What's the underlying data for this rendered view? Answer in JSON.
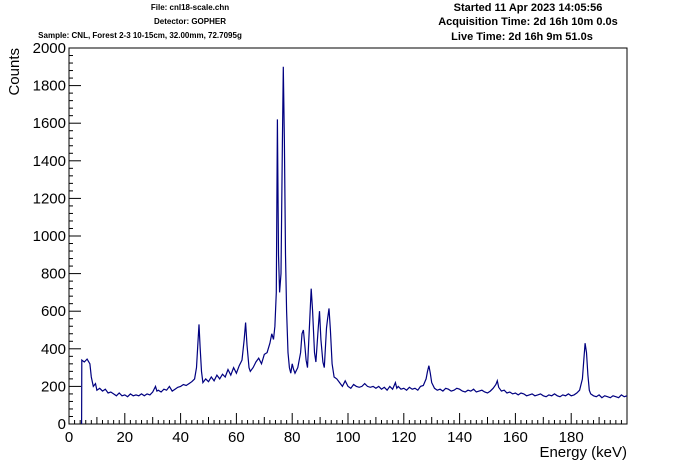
{
  "header": {
    "file": "File: cnl18-scale.chn",
    "detector": "Detector: GOPHER",
    "sample": "Sample: CNL, Forest 2-3 10-15cm, 32.00mm, 72.7095g",
    "started": "Started 11 Apr 2023 14:05:56",
    "acquisition": "Acquisition Time: 2d 16h 10m 0.0s",
    "live": "Live Time: 2d 16h 9m 51.0s"
  },
  "chart_data": {
    "type": "line",
    "xlabel": "Energy (keV)",
    "ylabel": "Counts",
    "xlim": [
      0,
      200
    ],
    "ylim": [
      0,
      2000
    ],
    "xticks": [
      0,
      20,
      40,
      60,
      80,
      100,
      120,
      140,
      160,
      180
    ],
    "yticks": [
      0,
      200,
      400,
      600,
      800,
      1000,
      1200,
      1400,
      1600,
      1800,
      2000
    ],
    "grid": false,
    "line_color": "#000080",
    "points": [
      [
        4.5,
        0
      ],
      [
        4.6,
        340
      ],
      [
        5.5,
        330
      ],
      [
        6.5,
        345
      ],
      [
        7.5,
        320
      ],
      [
        8,
        250
      ],
      [
        8.7,
        200
      ],
      [
        9.5,
        215
      ],
      [
        10,
        180
      ],
      [
        11,
        190
      ],
      [
        12,
        175
      ],
      [
        13,
        185
      ],
      [
        14,
        165
      ],
      [
        15,
        170
      ],
      [
        16,
        160
      ],
      [
        17,
        150
      ],
      [
        18,
        165
      ],
      [
        19,
        150
      ],
      [
        20,
        155
      ],
      [
        21,
        145
      ],
      [
        22,
        160
      ],
      [
        23,
        150
      ],
      [
        24,
        155
      ],
      [
        25,
        150
      ],
      [
        26,
        160
      ],
      [
        27,
        150
      ],
      [
        28,
        160
      ],
      [
        29,
        155
      ],
      [
        30,
        170
      ],
      [
        31,
        200
      ],
      [
        31.5,
        175
      ],
      [
        32,
        180
      ],
      [
        33,
        170
      ],
      [
        34,
        185
      ],
      [
        35,
        180
      ],
      [
        36,
        200
      ],
      [
        37,
        175
      ],
      [
        38,
        185
      ],
      [
        39,
        195
      ],
      [
        40,
        200
      ],
      [
        41,
        210
      ],
      [
        42,
        205
      ],
      [
        43,
        215
      ],
      [
        44,
        225
      ],
      [
        45,
        240
      ],
      [
        45.7,
        300
      ],
      [
        46.2,
        430
      ],
      [
        46.6,
        530
      ],
      [
        47,
        410
      ],
      [
        47.5,
        280
      ],
      [
        48,
        220
      ],
      [
        49,
        240
      ],
      [
        50,
        225
      ],
      [
        51,
        250
      ],
      [
        52,
        230
      ],
      [
        53,
        260
      ],
      [
        54,
        240
      ],
      [
        55,
        265
      ],
      [
        56,
        250
      ],
      [
        57,
        290
      ],
      [
        58,
        260
      ],
      [
        59,
        300
      ],
      [
        60,
        270
      ],
      [
        61,
        310
      ],
      [
        62,
        340
      ],
      [
        62.8,
        450
      ],
      [
        63.3,
        540
      ],
      [
        63.8,
        420
      ],
      [
        64.5,
        300
      ],
      [
        65,
        280
      ],
      [
        66,
        300
      ],
      [
        67,
        330
      ],
      [
        68,
        350
      ],
      [
        69,
        320
      ],
      [
        70,
        370
      ],
      [
        71,
        380
      ],
      [
        72,
        430
      ],
      [
        72.7,
        480
      ],
      [
        73.3,
        450
      ],
      [
        73.8,
        520
      ],
      [
        74.3,
        700
      ],
      [
        74.7,
        1620
      ],
      [
        75.1,
        900
      ],
      [
        75.5,
        700
      ],
      [
        76,
        800
      ],
      [
        76.5,
        1500
      ],
      [
        76.8,
        1900
      ],
      [
        77.2,
        1500
      ],
      [
        77.6,
        900
      ],
      [
        78,
        600
      ],
      [
        78.5,
        380
      ],
      [
        79,
        300
      ],
      [
        79.5,
        270
      ],
      [
        80,
        320
      ],
      [
        80.5,
        290
      ],
      [
        81,
        270
      ],
      [
        82,
        300
      ],
      [
        83,
        380
      ],
      [
        83.5,
        480
      ],
      [
        84,
        500
      ],
      [
        84.5,
        420
      ],
      [
        85,
        340
      ],
      [
        85.5,
        300
      ],
      [
        86.3,
        560
      ],
      [
        86.8,
        720
      ],
      [
        87.3,
        600
      ],
      [
        88,
        380
      ],
      [
        88.5,
        330
      ],
      [
        89.3,
        500
      ],
      [
        89.8,
        600
      ],
      [
        90.3,
        450
      ],
      [
        91,
        330
      ],
      [
        91.5,
        300
      ],
      [
        92.3,
        510
      ],
      [
        92.7,
        560
      ],
      [
        93.2,
        615
      ],
      [
        93.7,
        500
      ],
      [
        94.3,
        320
      ],
      [
        95,
        250
      ],
      [
        96,
        240
      ],
      [
        97,
        220
      ],
      [
        98,
        200
      ],
      [
        99,
        230
      ],
      [
        100,
        200
      ],
      [
        101,
        190
      ],
      [
        102,
        210
      ],
      [
        103,
        200
      ],
      [
        104,
        195
      ],
      [
        105,
        200
      ],
      [
        106,
        215
      ],
      [
        107,
        200
      ],
      [
        108,
        195
      ],
      [
        109,
        200
      ],
      [
        110,
        190
      ],
      [
        111,
        200
      ],
      [
        112,
        185
      ],
      [
        113,
        195
      ],
      [
        114,
        180
      ],
      [
        115,
        200
      ],
      [
        116,
        185
      ],
      [
        117,
        220
      ],
      [
        117.5,
        190
      ],
      [
        118,
        200
      ],
      [
        119,
        185
      ],
      [
        120,
        190
      ],
      [
        121,
        180
      ],
      [
        122,
        195
      ],
      [
        123,
        185
      ],
      [
        124,
        190
      ],
      [
        125,
        180
      ],
      [
        126,
        200
      ],
      [
        127,
        205
      ],
      [
        128,
        240
      ],
      [
        128.5,
        280
      ],
      [
        129,
        310
      ],
      [
        129.5,
        270
      ],
      [
        130,
        220
      ],
      [
        131,
        190
      ],
      [
        132,
        180
      ],
      [
        133,
        185
      ],
      [
        134,
        175
      ],
      [
        135,
        190
      ],
      [
        136,
        185
      ],
      [
        137,
        175
      ],
      [
        138,
        180
      ],
      [
        139,
        190
      ],
      [
        140,
        185
      ],
      [
        141,
        175
      ],
      [
        142,
        170
      ],
      [
        143,
        180
      ],
      [
        144,
        175
      ],
      [
        145,
        185
      ],
      [
        146,
        170
      ],
      [
        147,
        175
      ],
      [
        148,
        180
      ],
      [
        149,
        170
      ],
      [
        150,
        165
      ],
      [
        151,
        175
      ],
      [
        152,
        190
      ],
      [
        153,
        210
      ],
      [
        153.5,
        230
      ],
      [
        154,
        195
      ],
      [
        155,
        175
      ],
      [
        156,
        180
      ],
      [
        157,
        165
      ],
      [
        158,
        170
      ],
      [
        159,
        160
      ],
      [
        160,
        165
      ],
      [
        161,
        155
      ],
      [
        162,
        165
      ],
      [
        163,
        160
      ],
      [
        164,
        150
      ],
      [
        165,
        155
      ],
      [
        166,
        160
      ],
      [
        167,
        150
      ],
      [
        168,
        155
      ],
      [
        169,
        160
      ],
      [
        170,
        150
      ],
      [
        171,
        145
      ],
      [
        172,
        155
      ],
      [
        173,
        150
      ],
      [
        174,
        160
      ],
      [
        175,
        150
      ],
      [
        176,
        145
      ],
      [
        177,
        155
      ],
      [
        178,
        150
      ],
      [
        179,
        160
      ],
      [
        180,
        150
      ],
      [
        181,
        155
      ],
      [
        182,
        165
      ],
      [
        183,
        180
      ],
      [
        184,
        240
      ],
      [
        184.5,
        340
      ],
      [
        185,
        430
      ],
      [
        185.5,
        380
      ],
      [
        186,
        260
      ],
      [
        186.5,
        180
      ],
      [
        187,
        160
      ],
      [
        188,
        150
      ],
      [
        189,
        145
      ],
      [
        190,
        155
      ],
      [
        191,
        140
      ],
      [
        192,
        150
      ],
      [
        193,
        145
      ],
      [
        194,
        140
      ],
      [
        195,
        150
      ],
      [
        196,
        145
      ],
      [
        197,
        140
      ],
      [
        198,
        155
      ],
      [
        199,
        145
      ],
      [
        200,
        150
      ]
    ]
  }
}
